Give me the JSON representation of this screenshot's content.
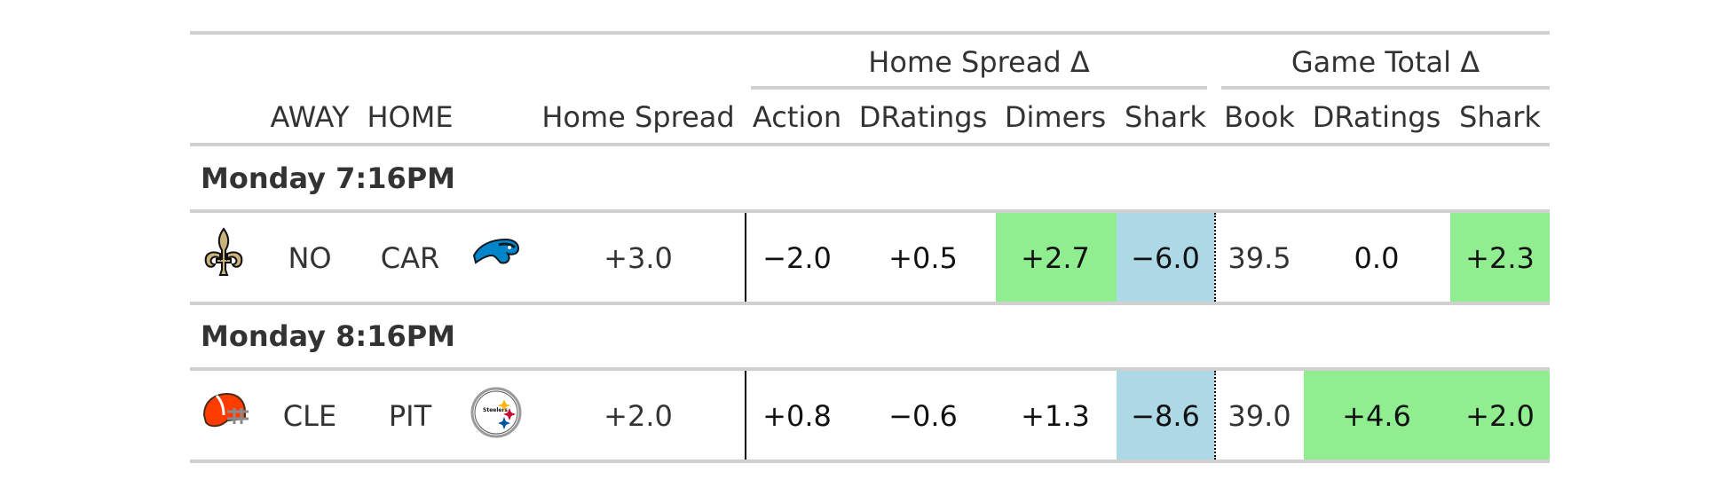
{
  "colors": {
    "green": "#90EE90",
    "blue": "#ADD8E6",
    "rule": "#d0d0d0"
  },
  "header": {
    "groups": [
      {
        "key": "spread",
        "label": "Home Spread Δ"
      },
      {
        "key": "total",
        "label": "Game Total Δ"
      }
    ],
    "columns": [
      "AWAY",
      "HOME",
      "Home Spread",
      "Action",
      "DRatings",
      "Dimers",
      "Shark",
      "Book",
      "DRatings",
      "Shark"
    ]
  },
  "chart_data": {
    "type": "table",
    "sections": [
      {
        "label": "Monday 7:16PM",
        "rows": [
          {
            "away_logo": "saints-fleur-de-lis-icon",
            "away": "NO",
            "home": "CAR",
            "home_logo": "panthers-icon",
            "home_spread": "+3.0",
            "action": "−2.0",
            "dratings_spread": "+0.5",
            "dimers": "+2.7",
            "shark_spread": "−6.0",
            "book": "39.5",
            "dratings_total": "0.0",
            "shark_total": "+2.3",
            "highlights": {
              "action": "",
              "dratings_spread": "",
              "dimers": "green",
              "shark_spread": "blue",
              "dratings_total": "",
              "shark_total": "green"
            }
          }
        ]
      },
      {
        "label": "Monday 8:16PM",
        "rows": [
          {
            "away_logo": "browns-helmet-icon",
            "away": "CLE",
            "home": "PIT",
            "home_logo": "steelers-icon",
            "home_spread": "+2.0",
            "action": "+0.8",
            "dratings_spread": "−0.6",
            "dimers": "+1.3",
            "shark_spread": "−8.6",
            "book": "39.0",
            "dratings_total": "+4.6",
            "shark_total": "+2.0",
            "highlights": {
              "action": "",
              "dratings_spread": "",
              "dimers": "",
              "shark_spread": "blue",
              "dratings_total": "green",
              "shark_total": "green"
            }
          }
        ]
      }
    ]
  }
}
